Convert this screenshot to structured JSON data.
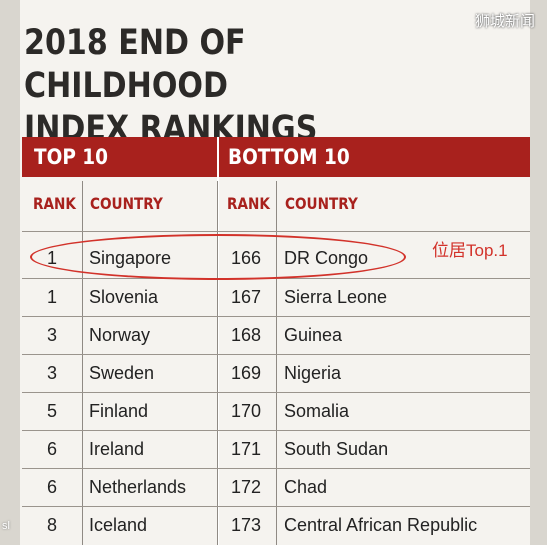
{
  "watermark": "狮城新闻",
  "title_line1": "2018 END OF CHILDHOOD",
  "title_line2": "INDEX RANKINGS",
  "top_header": "TOP 10",
  "bottom_header": "BOTTOM 10",
  "col_rank": "RANK",
  "col_country": "COUNTRY",
  "annotation": "位居Top.1",
  "side_text": "sl",
  "rows": [
    {
      "rank": "1",
      "country": "Singapore",
      "rank2": "166",
      "country2": "DR Congo"
    },
    {
      "rank": "1",
      "country": "Slovenia",
      "rank2": "167",
      "country2": "Sierra Leone"
    },
    {
      "rank": "3",
      "country": "Norway",
      "rank2": "168",
      "country2": "Guinea"
    },
    {
      "rank": "3",
      "country": "Sweden",
      "rank2": "169",
      "country2": "Nigeria"
    },
    {
      "rank": "5",
      "country": "Finland",
      "rank2": "170",
      "country2": "Somalia"
    },
    {
      "rank": "6",
      "country": "Ireland",
      "rank2": "171",
      "country2": "South Sudan"
    },
    {
      "rank": "6",
      "country": "Netherlands",
      "rank2": "172",
      "country2": "Chad"
    },
    {
      "rank": "8",
      "country": "Iceland",
      "rank2": "173",
      "country2": "Central African Republic"
    }
  ],
  "colors": {
    "header_red": "#a8211d",
    "annotation_red": "#d2322a"
  }
}
